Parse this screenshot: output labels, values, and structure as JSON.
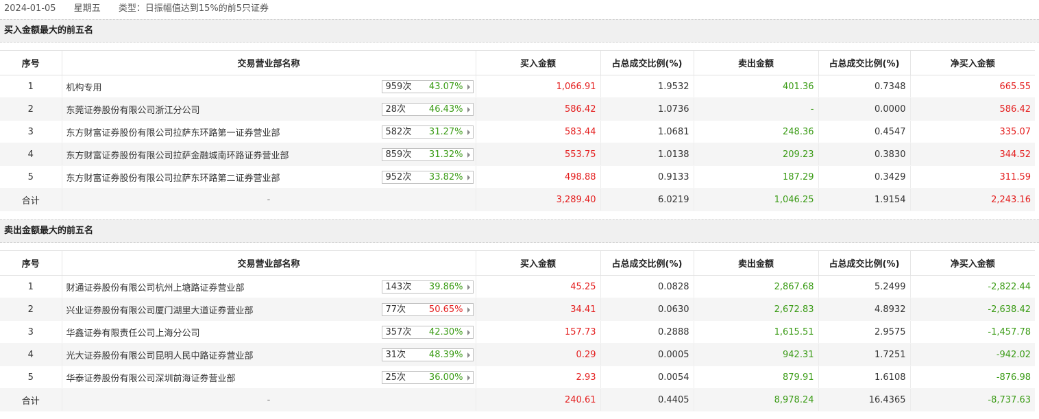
{
  "header": {
    "date": "2024-01-05",
    "weekday": "星期五",
    "type_label": "类型：日振幅值达到15%的前5只证券"
  },
  "columns": [
    "序号",
    "交易营业部名称",
    "买入金额",
    "占总成交比例(%)",
    "卖出金额",
    "占总成交比例(%)",
    "净买入金额"
  ],
  "buy_top": {
    "title": "买入金额最大的前五名",
    "rows": [
      {
        "idx": "1",
        "name": "机构专用",
        "count": "959次",
        "pct": "43.07%",
        "pct_color": "green",
        "buy": "1,066.91",
        "buy_ratio": "1.9532",
        "sell": "401.36",
        "sell_ratio": "0.7348",
        "net": "665.55",
        "net_color": "red"
      },
      {
        "idx": "2",
        "name": "东莞证券股份有限公司浙江分公司",
        "count": "28次",
        "pct": "46.43%",
        "pct_color": "green",
        "buy": "586.42",
        "buy_ratio": "1.0736",
        "sell": "-",
        "sell_ratio": "0.0000",
        "net": "586.42",
        "net_color": "red"
      },
      {
        "idx": "3",
        "name": "东方财富证券股份有限公司拉萨东环路第一证券营业部",
        "count": "582次",
        "pct": "31.27%",
        "pct_color": "green",
        "buy": "583.44",
        "buy_ratio": "1.0681",
        "sell": "248.36",
        "sell_ratio": "0.4547",
        "net": "335.07",
        "net_color": "red"
      },
      {
        "idx": "4",
        "name": "东方财富证券股份有限公司拉萨金融城南环路证券营业部",
        "count": "859次",
        "pct": "31.32%",
        "pct_color": "green",
        "buy": "553.75",
        "buy_ratio": "1.0138",
        "sell": "209.23",
        "sell_ratio": "0.3830",
        "net": "344.52",
        "net_color": "red"
      },
      {
        "idx": "5",
        "name": "东方财富证券股份有限公司拉萨东环路第二证券营业部",
        "count": "952次",
        "pct": "33.82%",
        "pct_color": "green",
        "buy": "498.88",
        "buy_ratio": "0.9133",
        "sell": "187.29",
        "sell_ratio": "0.3429",
        "net": "311.59",
        "net_color": "red"
      }
    ],
    "total": {
      "label": "合计",
      "name": "-",
      "buy": "3,289.40",
      "buy_ratio": "6.0219",
      "sell": "1,046.25",
      "sell_ratio": "1.9154",
      "net": "2,243.16",
      "net_color": "red"
    }
  },
  "sell_top": {
    "title": "卖出金额最大的前五名",
    "rows": [
      {
        "idx": "1",
        "name": "财通证券股份有限公司杭州上塘路证券营业部",
        "count": "143次",
        "pct": "39.86%",
        "pct_color": "green",
        "buy": "45.25",
        "buy_ratio": "0.0828",
        "sell": "2,867.68",
        "sell_ratio": "5.2499",
        "net": "-2,822.44",
        "net_color": "green"
      },
      {
        "idx": "2",
        "name": "兴业证券股份有限公司厦门湖里大道证券营业部",
        "count": "77次",
        "pct": "50.65%",
        "pct_color": "red",
        "buy": "34.41",
        "buy_ratio": "0.0630",
        "sell": "2,672.83",
        "sell_ratio": "4.8932",
        "net": "-2,638.42",
        "net_color": "green"
      },
      {
        "idx": "3",
        "name": "华鑫证券有限责任公司上海分公司",
        "count": "357次",
        "pct": "42.30%",
        "pct_color": "green",
        "buy": "157.73",
        "buy_ratio": "0.2888",
        "sell": "1,615.51",
        "sell_ratio": "2.9575",
        "net": "-1,457.78",
        "net_color": "green"
      },
      {
        "idx": "4",
        "name": "光大证券股份有限公司昆明人民中路证券营业部",
        "count": "31次",
        "pct": "48.39%",
        "pct_color": "green",
        "buy": "0.29",
        "buy_ratio": "0.0005",
        "sell": "942.31",
        "sell_ratio": "1.7251",
        "net": "-942.02",
        "net_color": "green"
      },
      {
        "idx": "5",
        "name": "华泰证券股份有限公司深圳前海证券营业部",
        "count": "25次",
        "pct": "36.00%",
        "pct_color": "green",
        "buy": "2.93",
        "buy_ratio": "0.0054",
        "sell": "879.91",
        "sell_ratio": "1.6108",
        "net": "-876.98",
        "net_color": "green"
      }
    ],
    "total": {
      "label": "合计",
      "name": "-",
      "buy": "240.61",
      "buy_ratio": "0.4405",
      "sell": "8,978.24",
      "sell_ratio": "16.4365",
      "net": "-8,737.63",
      "net_color": "green"
    }
  },
  "colors": {
    "red": "#e41e1e",
    "green": "#3a9b15",
    "row_alt": "#f5f5f5",
    "section_bg": "#f0f0f0"
  },
  "icons": {
    "badge_arrow": "caret-right-icon"
  }
}
